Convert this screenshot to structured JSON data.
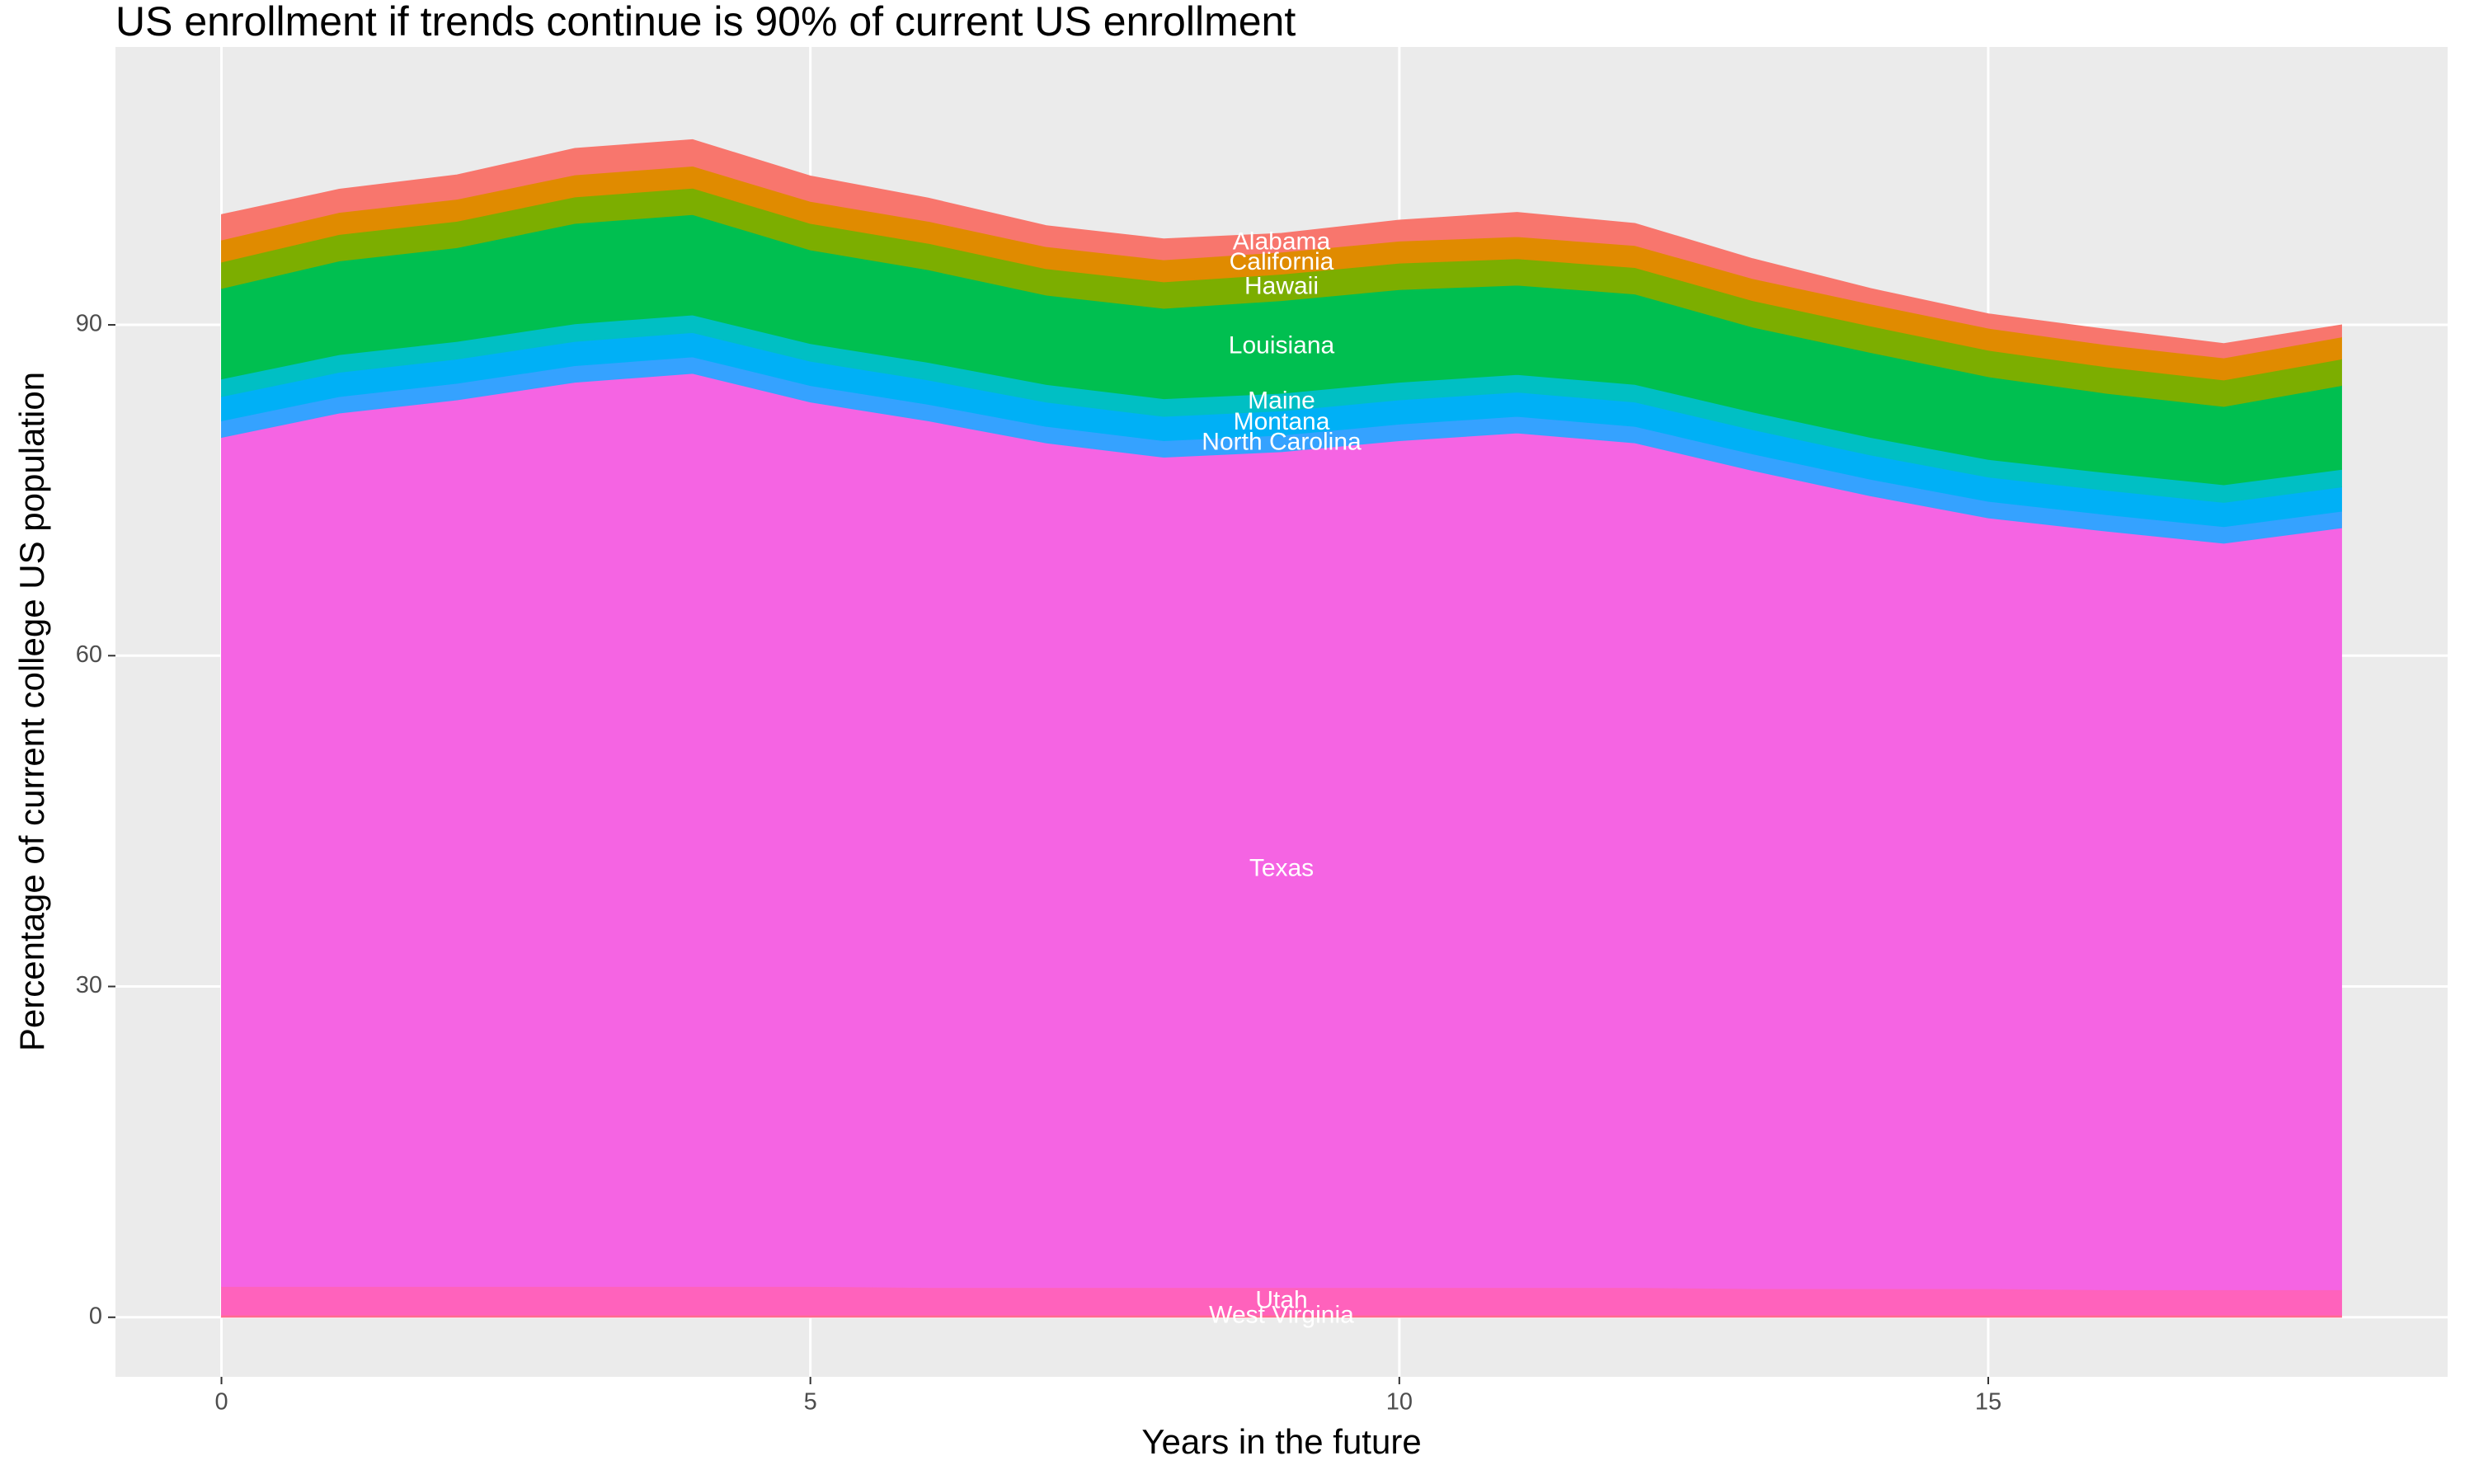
{
  "chart_data": {
    "type": "stacked-area",
    "title": "US enrollment if trends continue is 90% of current US enrollment",
    "x_label": "Years in the future",
    "y_label": "Percentage of current college US population",
    "x": [
      0,
      1,
      2,
      3,
      4,
      5,
      6,
      7,
      8,
      9,
      10,
      11,
      12,
      13,
      14,
      15,
      16,
      17,
      18
    ],
    "xlim": [
      -0.9,
      18.9
    ],
    "xticks": [
      0,
      5,
      10,
      15
    ],
    "ylim": [
      -5.4,
      115.2
    ],
    "yticks": [
      0,
      30,
      60,
      90
    ],
    "grid": true,
    "series": [
      {
        "name": "West Virginia",
        "color": "#FF6C91",
        "values": [
          0.2,
          0.2,
          0.2,
          0.2,
          0.2,
          0.2,
          0.2,
          0.2,
          0.2,
          0.2,
          0.2,
          0.2,
          0.2,
          0.2,
          0.2,
          0.2,
          0.2,
          0.2,
          0.2
        ]
      },
      {
        "name": "Utah",
        "color": "#FF62BC",
        "values": [
          2.6,
          2.6,
          2.6,
          2.6,
          2.6,
          2.6,
          2.5,
          2.5,
          2.5,
          2.5,
          2.5,
          2.5,
          2.5,
          2.4,
          2.4,
          2.4,
          2.3,
          2.3,
          2.3
        ]
      },
      {
        "name": "Texas",
        "color": "#F564E3",
        "values": [
          77.0,
          79.2,
          80.4,
          82.0,
          82.8,
          80.2,
          78.6,
          76.6,
          75.3,
          75.8,
          76.8,
          77.5,
          76.6,
          74.2,
          71.9,
          69.9,
          68.8,
          67.7,
          69.1
        ]
      },
      {
        "name": "North Carolina",
        "color": "#35A2FF",
        "values": [
          1.5,
          1.5,
          1.5,
          1.5,
          1.5,
          1.5,
          1.5,
          1.5,
          1.5,
          1.5,
          1.5,
          1.5,
          1.5,
          1.5,
          1.5,
          1.5,
          1.5,
          1.5,
          1.5
        ]
      },
      {
        "name": "Montana",
        "color": "#00B0F6",
        "values": [
          2.2,
          2.2,
          2.2,
          2.2,
          2.2,
          2.2,
          2.2,
          2.2,
          2.2,
          2.2,
          2.2,
          2.2,
          2.2,
          2.2,
          2.2,
          2.2,
          2.2,
          2.2,
          2.2
        ]
      },
      {
        "name": "Maine",
        "color": "#00BFC4",
        "values": [
          1.6,
          1.6,
          1.6,
          1.6,
          1.6,
          1.6,
          1.6,
          1.6,
          1.6,
          1.6,
          1.6,
          1.6,
          1.6,
          1.6,
          1.6,
          1.6,
          1.6,
          1.6,
          1.6
        ]
      },
      {
        "name": "Louisiana",
        "color": "#00BF50",
        "values": [
          8.2,
          8.5,
          8.5,
          9.1,
          9.1,
          8.5,
          8.4,
          8.1,
          8.2,
          8.4,
          8.4,
          8.1,
          8.2,
          7.7,
          7.7,
          7.5,
          7.2,
          7.1,
          7.6
        ]
      },
      {
        "name": "Hawaii",
        "color": "#7CAE00",
        "values": [
          2.4,
          2.4,
          2.4,
          2.4,
          2.4,
          2.4,
          2.4,
          2.4,
          2.4,
          2.4,
          2.4,
          2.4,
          2.4,
          2.4,
          2.4,
          2.4,
          2.4,
          2.4,
          2.4
        ]
      },
      {
        "name": "California",
        "color": "#E08B00",
        "values": [
          2.0,
          2.0,
          2.0,
          2.0,
          2.0,
          2.0,
          2.0,
          2.0,
          2.0,
          2.0,
          2.0,
          2.0,
          2.0,
          2.0,
          2.0,
          2.0,
          2.0,
          2.0,
          2.0
        ]
      },
      {
        "name": "Alabama",
        "color": "#F8766D",
        "values": [
          2.3,
          2.1,
          2.2,
          2.4,
          2.4,
          2.3,
          2.1,
          1.9,
          1.9,
          1.7,
          1.9,
          2.2,
          2.0,
          1.8,
          1.4,
          1.3,
          1.4,
          1.3,
          1.1
        ]
      }
    ]
  }
}
